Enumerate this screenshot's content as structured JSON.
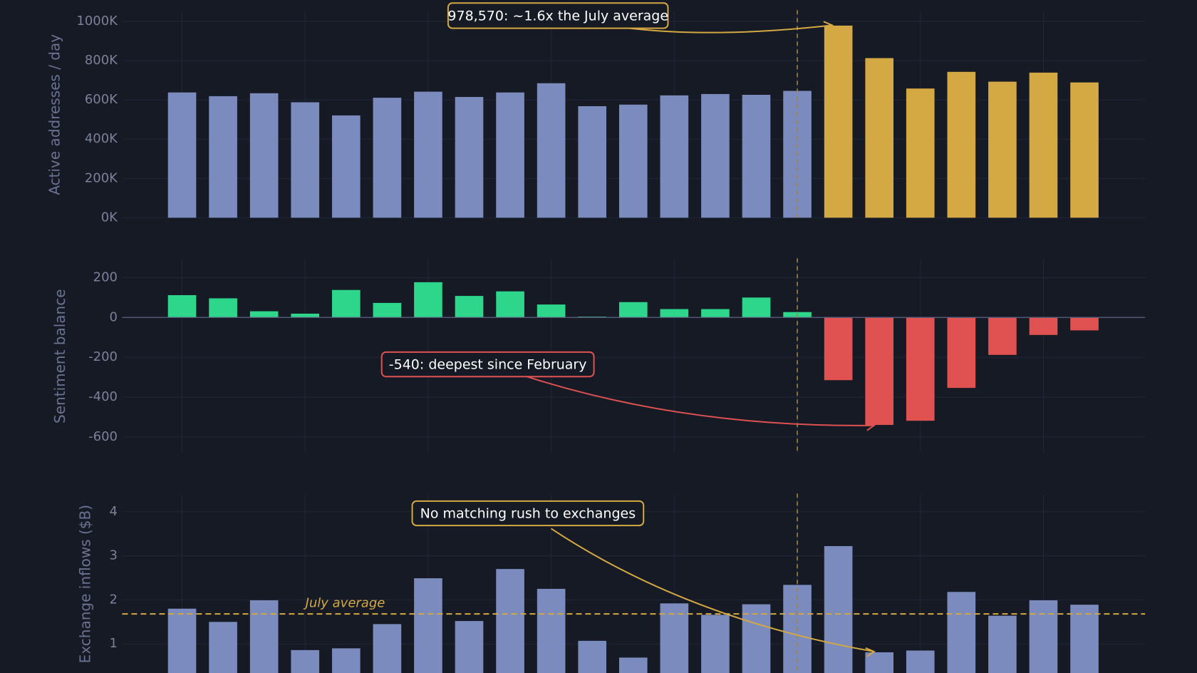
{
  "chart_data": [
    {
      "type": "bar",
      "ylabel": "Active addresses / day",
      "values": [
        638000,
        619000,
        634000,
        588000,
        521000,
        611000,
        642000,
        615000,
        638000,
        685000,
        568000,
        576000,
        623000,
        630000,
        626000,
        646000,
        978570,
        813000,
        658000,
        743000,
        693000,
        739000,
        689000
      ],
      "colors": [
        "#7b8bbd",
        "#7b8bbd",
        "#7b8bbd",
        "#7b8bbd",
        "#7b8bbd",
        "#7b8bbd",
        "#7b8bbd",
        "#7b8bbd",
        "#7b8bbd",
        "#7b8bbd",
        "#7b8bbd",
        "#7b8bbd",
        "#7b8bbd",
        "#7b8bbd",
        "#7b8bbd",
        "#7b8bbd",
        "#d4a843",
        "#d4a843",
        "#d4a843",
        "#d4a843",
        "#d4a843",
        "#d4a843",
        "#d4a843"
      ],
      "ylim": [
        0,
        1050000
      ],
      "yticks": [
        {
          "value": 0,
          "label": "0K"
        },
        {
          "value": 200000,
          "label": "200K"
        },
        {
          "value": 400000,
          "label": "400K"
        },
        {
          "value": 600000,
          "label": "600K"
        },
        {
          "value": 800000,
          "label": "800K"
        },
        {
          "value": 1000000,
          "label": "1000K"
        }
      ],
      "grid": true,
      "annotation": "978,570: ~1.6x the July average",
      "annotation_color": "#d4a843"
    },
    {
      "type": "diverging-bar",
      "ylabel": "Sentiment balance",
      "values": [
        112,
        96,
        31,
        19,
        138,
        73,
        177,
        108,
        131,
        65,
        4,
        77,
        42,
        42,
        100,
        27,
        -315,
        -540,
        -519,
        -354,
        -188,
        -88,
        -65
      ],
      "positive_color": "#2ed68c",
      "negative_color": "#e05252",
      "ylim": [
        -680,
        290
      ],
      "yticks": [
        -600,
        -400,
        -200,
        0,
        200
      ],
      "grid": true,
      "annotation": "-540: deepest since February",
      "annotation_color": "#e05252"
    },
    {
      "type": "bar",
      "ylabel": "Exchange inflows ($B)",
      "values": [
        1.8,
        1.5,
        1.99,
        0.86,
        0.9,
        1.45,
        2.49,
        1.52,
        2.7,
        2.25,
        1.07,
        0.69,
        1.92,
        1.66,
        1.9,
        2.34,
        3.22,
        0.81,
        0.85,
        2.18,
        1.64,
        1.99,
        1.89
      ],
      "color": "#7b8bbd",
      "ylim": [
        0,
        4.38
      ],
      "yticks": [
        1,
        2,
        3,
        4
      ],
      "grid": true,
      "annotation": "No matching rush to exchanges",
      "annotation_color": "#d4a843",
      "reference_line": {
        "value": 1.68,
        "label": "July average",
        "color": "#d4a843"
      }
    }
  ]
}
